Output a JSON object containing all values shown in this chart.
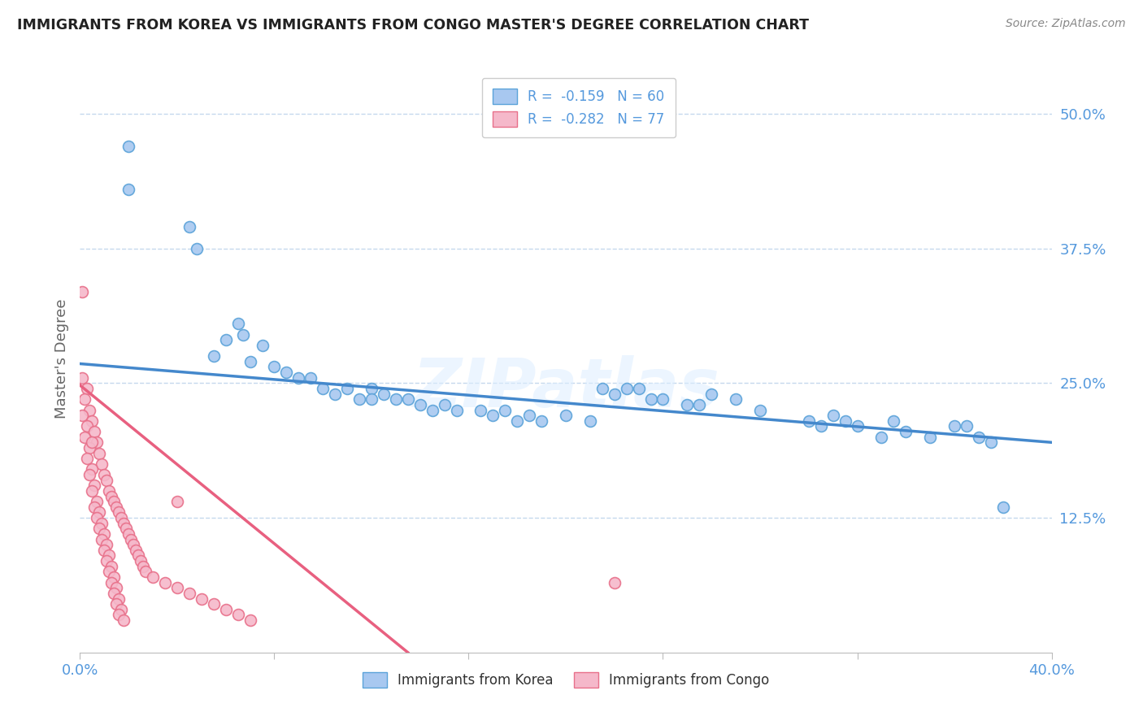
{
  "title": "IMMIGRANTS FROM KOREA VS IMMIGRANTS FROM CONGO MASTER'S DEGREE CORRELATION CHART",
  "source": "Source: ZipAtlas.com",
  "ylabel": "Master's Degree",
  "yticks": [
    0.125,
    0.25,
    0.375,
    0.5
  ],
  "ytick_labels": [
    "12.5%",
    "25.0%",
    "37.5%",
    "50.0%"
  ],
  "xlim": [
    0.0,
    0.4
  ],
  "ylim": [
    0.0,
    0.545
  ],
  "korea_color": "#a8c8f0",
  "congo_color": "#f5b8ca",
  "korea_edge_color": "#5ba3d9",
  "congo_edge_color": "#e8708a",
  "korea_line_color": "#4488cc",
  "congo_line_color": "#e86080",
  "korea_scatter": [
    [
      0.02,
      0.47
    ],
    [
      0.02,
      0.43
    ],
    [
      0.045,
      0.395
    ],
    [
      0.048,
      0.375
    ],
    [
      0.065,
      0.305
    ],
    [
      0.067,
      0.295
    ],
    [
      0.06,
      0.29
    ],
    [
      0.075,
      0.285
    ],
    [
      0.055,
      0.275
    ],
    [
      0.07,
      0.27
    ],
    [
      0.08,
      0.265
    ],
    [
      0.085,
      0.26
    ],
    [
      0.09,
      0.255
    ],
    [
      0.095,
      0.255
    ],
    [
      0.1,
      0.245
    ],
    [
      0.105,
      0.24
    ],
    [
      0.11,
      0.245
    ],
    [
      0.115,
      0.235
    ],
    [
      0.12,
      0.245
    ],
    [
      0.12,
      0.235
    ],
    [
      0.125,
      0.24
    ],
    [
      0.13,
      0.235
    ],
    [
      0.135,
      0.235
    ],
    [
      0.14,
      0.23
    ],
    [
      0.145,
      0.225
    ],
    [
      0.15,
      0.23
    ],
    [
      0.155,
      0.225
    ],
    [
      0.165,
      0.225
    ],
    [
      0.17,
      0.22
    ],
    [
      0.175,
      0.225
    ],
    [
      0.18,
      0.215
    ],
    [
      0.185,
      0.22
    ],
    [
      0.19,
      0.215
    ],
    [
      0.2,
      0.22
    ],
    [
      0.21,
      0.215
    ],
    [
      0.215,
      0.245
    ],
    [
      0.22,
      0.24
    ],
    [
      0.225,
      0.245
    ],
    [
      0.23,
      0.245
    ],
    [
      0.235,
      0.235
    ],
    [
      0.24,
      0.235
    ],
    [
      0.25,
      0.23
    ],
    [
      0.255,
      0.23
    ],
    [
      0.26,
      0.24
    ],
    [
      0.27,
      0.235
    ],
    [
      0.28,
      0.225
    ],
    [
      0.3,
      0.215
    ],
    [
      0.305,
      0.21
    ],
    [
      0.31,
      0.22
    ],
    [
      0.315,
      0.215
    ],
    [
      0.32,
      0.21
    ],
    [
      0.33,
      0.2
    ],
    [
      0.335,
      0.215
    ],
    [
      0.34,
      0.205
    ],
    [
      0.35,
      0.2
    ],
    [
      0.36,
      0.21
    ],
    [
      0.365,
      0.21
    ],
    [
      0.37,
      0.2
    ],
    [
      0.375,
      0.195
    ],
    [
      0.38,
      0.135
    ]
  ],
  "congo_scatter": [
    [
      0.001,
      0.255
    ],
    [
      0.003,
      0.245
    ],
    [
      0.002,
      0.235
    ],
    [
      0.004,
      0.225
    ],
    [
      0.001,
      0.22
    ],
    [
      0.005,
      0.215
    ],
    [
      0.003,
      0.21
    ],
    [
      0.006,
      0.205
    ],
    [
      0.002,
      0.2
    ],
    [
      0.007,
      0.195
    ],
    [
      0.004,
      0.19
    ],
    [
      0.008,
      0.185
    ],
    [
      0.003,
      0.18
    ],
    [
      0.009,
      0.175
    ],
    [
      0.005,
      0.17
    ],
    [
      0.01,
      0.165
    ],
    [
      0.004,
      0.165
    ],
    [
      0.011,
      0.16
    ],
    [
      0.006,
      0.155
    ],
    [
      0.012,
      0.15
    ],
    [
      0.005,
      0.15
    ],
    [
      0.013,
      0.145
    ],
    [
      0.007,
      0.14
    ],
    [
      0.014,
      0.14
    ],
    [
      0.006,
      0.135
    ],
    [
      0.015,
      0.135
    ],
    [
      0.008,
      0.13
    ],
    [
      0.016,
      0.13
    ],
    [
      0.007,
      0.125
    ],
    [
      0.017,
      0.125
    ],
    [
      0.009,
      0.12
    ],
    [
      0.018,
      0.12
    ],
    [
      0.008,
      0.115
    ],
    [
      0.019,
      0.115
    ],
    [
      0.01,
      0.11
    ],
    [
      0.02,
      0.11
    ],
    [
      0.009,
      0.105
    ],
    [
      0.021,
      0.105
    ],
    [
      0.011,
      0.1
    ],
    [
      0.022,
      0.1
    ],
    [
      0.01,
      0.095
    ],
    [
      0.023,
      0.095
    ],
    [
      0.012,
      0.09
    ],
    [
      0.024,
      0.09
    ],
    [
      0.011,
      0.085
    ],
    [
      0.025,
      0.085
    ],
    [
      0.013,
      0.08
    ],
    [
      0.026,
      0.08
    ],
    [
      0.012,
      0.075
    ],
    [
      0.027,
      0.075
    ],
    [
      0.014,
      0.07
    ],
    [
      0.03,
      0.07
    ],
    [
      0.013,
      0.065
    ],
    [
      0.035,
      0.065
    ],
    [
      0.015,
      0.06
    ],
    [
      0.04,
      0.06
    ],
    [
      0.014,
      0.055
    ],
    [
      0.045,
      0.055
    ],
    [
      0.016,
      0.05
    ],
    [
      0.05,
      0.05
    ],
    [
      0.015,
      0.045
    ],
    [
      0.055,
      0.045
    ],
    [
      0.017,
      0.04
    ],
    [
      0.06,
      0.04
    ],
    [
      0.016,
      0.035
    ],
    [
      0.065,
      0.035
    ],
    [
      0.018,
      0.03
    ],
    [
      0.07,
      0.03
    ],
    [
      0.001,
      0.335
    ],
    [
      0.005,
      0.195
    ],
    [
      0.22,
      0.065
    ],
    [
      0.04,
      0.14
    ]
  ],
  "korea_trendline": [
    [
      0.0,
      0.268
    ],
    [
      0.4,
      0.195
    ]
  ],
  "congo_trendline": [
    [
      0.0,
      0.248
    ],
    [
      0.135,
      0.0
    ]
  ],
  "watermark_text": "ZIPatlas"
}
